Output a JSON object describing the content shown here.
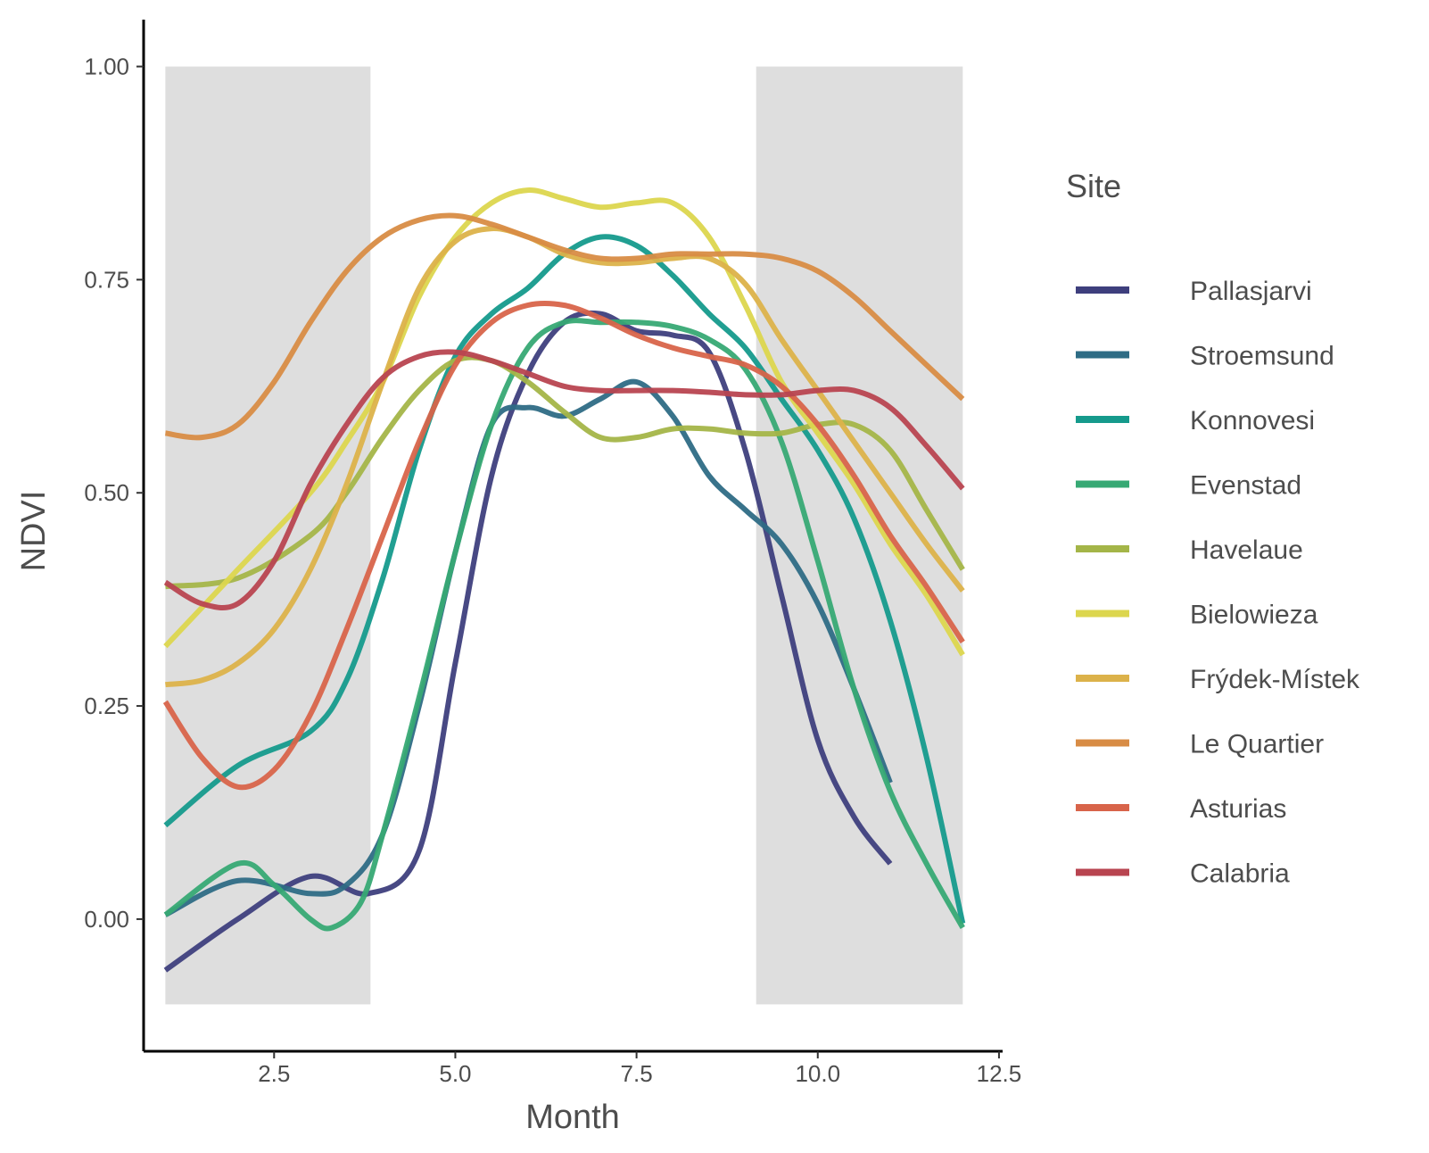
{
  "chart_data": {
    "type": "line",
    "xlabel": "Month",
    "ylabel": "NDVI",
    "xlim": [
      0.7,
      12.55
    ],
    "ylim": [
      -0.155,
      1.055
    ],
    "x_ticks": [
      2.5,
      5.0,
      7.5,
      10.0,
      12.5
    ],
    "x_tick_labels": [
      "2.5",
      "5.0",
      "7.5",
      "10.0",
      "12.5"
    ],
    "y_ticks": [
      0.0,
      0.25,
      0.5,
      0.75,
      1.0
    ],
    "y_tick_labels": [
      "0.00",
      "0.25",
      "0.50",
      "0.75",
      "1.00"
    ],
    "grid": false,
    "shaded_regions": [
      {
        "x": [
          1.0,
          3.83
        ],
        "y": [
          -0.1,
          1.0
        ],
        "color": "#dedede"
      },
      {
        "x": [
          9.15,
          12.0
        ],
        "y": [
          -0.1,
          1.0
        ],
        "color": "#dedede"
      }
    ],
    "legend": {
      "title": "Site",
      "position": "right"
    },
    "series": [
      {
        "name": "Pallasjarvi",
        "color": "#3e3f7d",
        "x": [
          1,
          2,
          3,
          3.8,
          4.5,
          5,
          5.5,
          6,
          6.5,
          7,
          7.5,
          8,
          8.5,
          9,
          9.5,
          10,
          10.5,
          11
        ],
        "y": [
          -0.06,
          0.0,
          0.05,
          0.03,
          0.08,
          0.3,
          0.52,
          0.64,
          0.7,
          0.71,
          0.69,
          0.685,
          0.665,
          0.55,
          0.38,
          0.21,
          0.12,
          0.065
        ]
      },
      {
        "name": "Stroemsund",
        "color": "#2e6c85",
        "x": [
          1,
          2,
          3,
          3.5,
          4,
          4.5,
          5,
          5.5,
          6,
          6.5,
          7,
          7.5,
          8,
          8.5,
          9,
          9.5,
          10,
          10.5,
          11
        ],
        "y": [
          0.005,
          0.045,
          0.03,
          0.04,
          0.1,
          0.25,
          0.43,
          0.58,
          0.6,
          0.59,
          0.61,
          0.63,
          0.59,
          0.52,
          0.48,
          0.44,
          0.37,
          0.27,
          0.16
        ]
      },
      {
        "name": "Konnovesi",
        "color": "#159a8c",
        "x": [
          1,
          2,
          3,
          3.5,
          4,
          4.5,
          5,
          5.5,
          6,
          6.5,
          7,
          7.5,
          8,
          8.5,
          9,
          9.5,
          10,
          10.5,
          11,
          11.5,
          12
        ],
        "y": [
          0.11,
          0.18,
          0.22,
          0.28,
          0.4,
          0.55,
          0.66,
          0.71,
          0.74,
          0.78,
          0.8,
          0.79,
          0.755,
          0.71,
          0.67,
          0.61,
          0.55,
          0.47,
          0.35,
          0.19,
          -0.005
        ]
      },
      {
        "name": "Evenstad",
        "color": "#37a974",
        "x": [
          1,
          2,
          2.5,
          3,
          3.3,
          3.7,
          4,
          4.5,
          5,
          5.5,
          6,
          6.5,
          7,
          7.5,
          8,
          8.5,
          9,
          9.5,
          10,
          10.5,
          11,
          11.5,
          12
        ],
        "y": [
          0.005,
          0.065,
          0.04,
          0.0,
          -0.01,
          0.02,
          0.1,
          0.26,
          0.43,
          0.58,
          0.67,
          0.7,
          0.7,
          0.7,
          0.695,
          0.68,
          0.645,
          0.56,
          0.42,
          0.27,
          0.15,
          0.065,
          -0.01
        ]
      },
      {
        "name": "Havelaue",
        "color": "#a4b548",
        "x": [
          1,
          2,
          3,
          3.5,
          4,
          4.5,
          5,
          5.5,
          6,
          6.5,
          7,
          7.5,
          8,
          8.5,
          9,
          9.5,
          10,
          10.5,
          11,
          11.5,
          12
        ],
        "y": [
          0.39,
          0.4,
          0.45,
          0.5,
          0.565,
          0.62,
          0.655,
          0.655,
          0.63,
          0.595,
          0.565,
          0.565,
          0.575,
          0.575,
          0.57,
          0.57,
          0.58,
          0.58,
          0.55,
          0.48,
          0.41
        ]
      },
      {
        "name": "Bielowieza",
        "color": "#dcd64e",
        "x": [
          1,
          2,
          3,
          3.5,
          4,
          4.5,
          5,
          5.5,
          6,
          6.5,
          7,
          7.5,
          8,
          8.5,
          9,
          9.5,
          10,
          10.5,
          11,
          11.5,
          12
        ],
        "y": [
          0.32,
          0.41,
          0.5,
          0.56,
          0.63,
          0.73,
          0.8,
          0.84,
          0.855,
          0.845,
          0.835,
          0.84,
          0.84,
          0.8,
          0.72,
          0.63,
          0.57,
          0.51,
          0.44,
          0.38,
          0.31
        ]
      },
      {
        "name": "Frýdek-Místek",
        "color": "#dcb24a",
        "x": [
          1,
          1.5,
          2,
          2.5,
          3,
          3.5,
          4,
          4.5,
          5,
          5.5,
          6,
          6.5,
          7,
          7.5,
          8,
          8.5,
          9,
          9.5,
          10,
          10.5,
          11,
          11.5,
          12
        ],
        "y": [
          0.275,
          0.28,
          0.3,
          0.34,
          0.41,
          0.51,
          0.63,
          0.74,
          0.795,
          0.81,
          0.8,
          0.78,
          0.77,
          0.77,
          0.775,
          0.775,
          0.745,
          0.68,
          0.62,
          0.56,
          0.5,
          0.44,
          0.385
        ]
      },
      {
        "name": "Le Quartier",
        "color": "#d88c45",
        "x": [
          1,
          1.5,
          2,
          2.5,
          3,
          3.5,
          4,
          4.5,
          5,
          5.5,
          6,
          6.5,
          7,
          7.5,
          8,
          8.5,
          9,
          9.5,
          10,
          10.5,
          11,
          11.5,
          12
        ],
        "y": [
          0.57,
          0.565,
          0.58,
          0.63,
          0.7,
          0.76,
          0.8,
          0.82,
          0.825,
          0.815,
          0.8,
          0.785,
          0.775,
          0.775,
          0.78,
          0.78,
          0.78,
          0.775,
          0.76,
          0.73,
          0.69,
          0.65,
          0.61
        ]
      },
      {
        "name": "Asturias",
        "color": "#d8644a",
        "x": [
          1,
          1.5,
          2,
          2.5,
          3,
          3.5,
          4,
          4.5,
          5,
          5.5,
          6,
          6.5,
          7,
          7.5,
          8,
          8.5,
          9,
          9.5,
          10,
          10.5,
          11,
          11.5,
          12
        ],
        "y": [
          0.255,
          0.19,
          0.155,
          0.175,
          0.24,
          0.34,
          0.45,
          0.56,
          0.65,
          0.7,
          0.72,
          0.72,
          0.705,
          0.685,
          0.67,
          0.66,
          0.65,
          0.625,
          0.58,
          0.52,
          0.45,
          0.39,
          0.325
        ]
      },
      {
        "name": "Calabria",
        "color": "#b84450",
        "x": [
          1,
          1.5,
          2,
          2.5,
          3,
          3.5,
          4,
          4.5,
          5,
          5.5,
          6,
          6.5,
          7,
          7.5,
          8,
          8.5,
          9,
          9.5,
          10,
          10.5,
          11,
          11.5,
          12
        ],
        "y": [
          0.395,
          0.37,
          0.37,
          0.42,
          0.51,
          0.58,
          0.635,
          0.66,
          0.665,
          0.655,
          0.64,
          0.625,
          0.62,
          0.62,
          0.62,
          0.618,
          0.615,
          0.615,
          0.62,
          0.62,
          0.6,
          0.555,
          0.505
        ]
      }
    ]
  }
}
